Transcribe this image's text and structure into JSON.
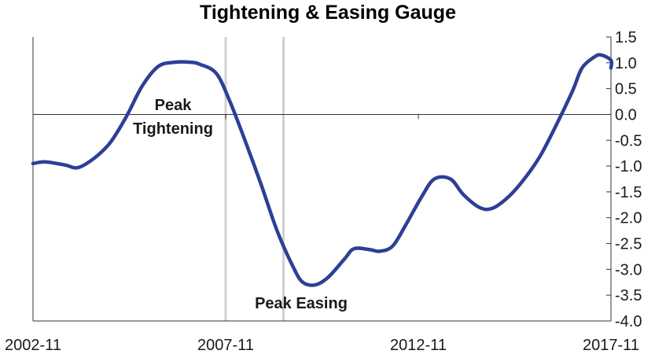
{
  "chart_data": {
    "type": "line",
    "title": "Tightening & Easing Gauge",
    "xlabel": "",
    "ylabel": "",
    "x_tick_labels": [
      "2002-11",
      "2007-11",
      "2012-11",
      "2017-11"
    ],
    "x_range": [
      "2002-11",
      "2017-11"
    ],
    "y_ticks": [
      "1.5",
      "1.0",
      "0.5",
      "0.0",
      "-0.5",
      "-1.0",
      "-1.5",
      "-2.0",
      "-2.5",
      "-3.0",
      "-3.5",
      "-4.0"
    ],
    "ylim": [
      -4.0,
      1.5
    ],
    "y_axis_side": "right",
    "grid": false,
    "series": [
      {
        "color": "#2e3f96",
        "points": [
          [
            "2002-11",
            -0.95
          ],
          [
            "2003-03",
            -0.92
          ],
          [
            "2003-09",
            -0.98
          ],
          [
            "2004-01",
            -1.03
          ],
          [
            "2004-06",
            -0.85
          ],
          [
            "2004-11",
            -0.55
          ],
          [
            "2005-04",
            -0.05
          ],
          [
            "2005-09",
            0.55
          ],
          [
            "2006-02",
            0.93
          ],
          [
            "2006-07",
            1.01
          ],
          [
            "2006-12",
            1.01
          ],
          [
            "2007-03",
            0.97
          ],
          [
            "2007-08",
            0.8
          ],
          [
            "2007-12",
            0.3
          ],
          [
            "2008-05",
            -0.5
          ],
          [
            "2008-10",
            -1.35
          ],
          [
            "2009-03",
            -2.25
          ],
          [
            "2009-08",
            -2.95
          ],
          [
            "2009-11",
            -3.25
          ],
          [
            "2010-03",
            -3.3
          ],
          [
            "2010-07",
            -3.15
          ],
          [
            "2010-12",
            -2.8
          ],
          [
            "2011-03",
            -2.6
          ],
          [
            "2011-08",
            -2.62
          ],
          [
            "2011-11",
            -2.65
          ],
          [
            "2012-03",
            -2.55
          ],
          [
            "2012-07",
            -2.15
          ],
          [
            "2012-12",
            -1.6
          ],
          [
            "2013-04",
            -1.25
          ],
          [
            "2013-09",
            -1.25
          ],
          [
            "2014-01",
            -1.55
          ],
          [
            "2014-06",
            -1.8
          ],
          [
            "2014-10",
            -1.82
          ],
          [
            "2015-03",
            -1.6
          ],
          [
            "2015-08",
            -1.25
          ],
          [
            "2016-01",
            -0.8
          ],
          [
            "2016-06",
            -0.2
          ],
          [
            "2016-11",
            0.45
          ],
          [
            "2017-02",
            0.9
          ],
          [
            "2017-06",
            1.12
          ],
          [
            "2017-08",
            1.15
          ],
          [
            "2017-11",
            1.05
          ],
          [
            "2018-01",
            0.9
          ]
        ]
      }
    ],
    "reference_lines": [
      {
        "x": "2007-11",
        "y": 0.0
      },
      {
        "x": "2009-05",
        "y": -3.2
      }
    ],
    "annotations": [
      {
        "lines": [
          "Peak",
          "Tightening"
        ]
      },
      {
        "lines": [
          "Peak Easing"
        ]
      }
    ]
  }
}
